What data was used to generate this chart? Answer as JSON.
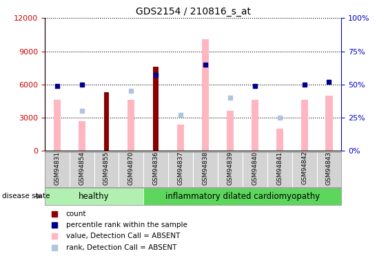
{
  "title": "GDS2154 / 210816_s_at",
  "samples": [
    "GSM94831",
    "GSM94854",
    "GSM94855",
    "GSM94870",
    "GSM94836",
    "GSM94837",
    "GSM94838",
    "GSM94839",
    "GSM94840",
    "GSM94841",
    "GSM94842",
    "GSM94843"
  ],
  "count_values": [
    0,
    0,
    5300,
    0,
    7600,
    0,
    0,
    0,
    0,
    0,
    0,
    0
  ],
  "percentile_rank_right": [
    49,
    50,
    null,
    null,
    57,
    null,
    65,
    null,
    49,
    null,
    50,
    52
  ],
  "value_absent": [
    4600,
    2700,
    null,
    4600,
    null,
    2400,
    10100,
    3600,
    4600,
    2000,
    4600,
    5000
  ],
  "rank_absent_right": [
    null,
    30,
    null,
    45,
    null,
    27,
    null,
    40,
    null,
    25,
    null,
    null
  ],
  "ylim_left": [
    0,
    12000
  ],
  "ylim_right": [
    0,
    100
  ],
  "yticks_left": [
    0,
    3000,
    6000,
    9000,
    12000
  ],
  "yticks_right": [
    0,
    25,
    50,
    75,
    100
  ],
  "healthy_count": 4,
  "bar_color_count": "#8b0000",
  "bar_color_rank": "#00008b",
  "bar_color_value_absent": "#ffb6c1",
  "bar_color_rank_absent": "#b0c4de",
  "tick_color_left": "#cc0000",
  "tick_color_right": "#0000cc",
  "group_healthy_color": "#b2f0b2",
  "group_inflam_color": "#5cd65c"
}
